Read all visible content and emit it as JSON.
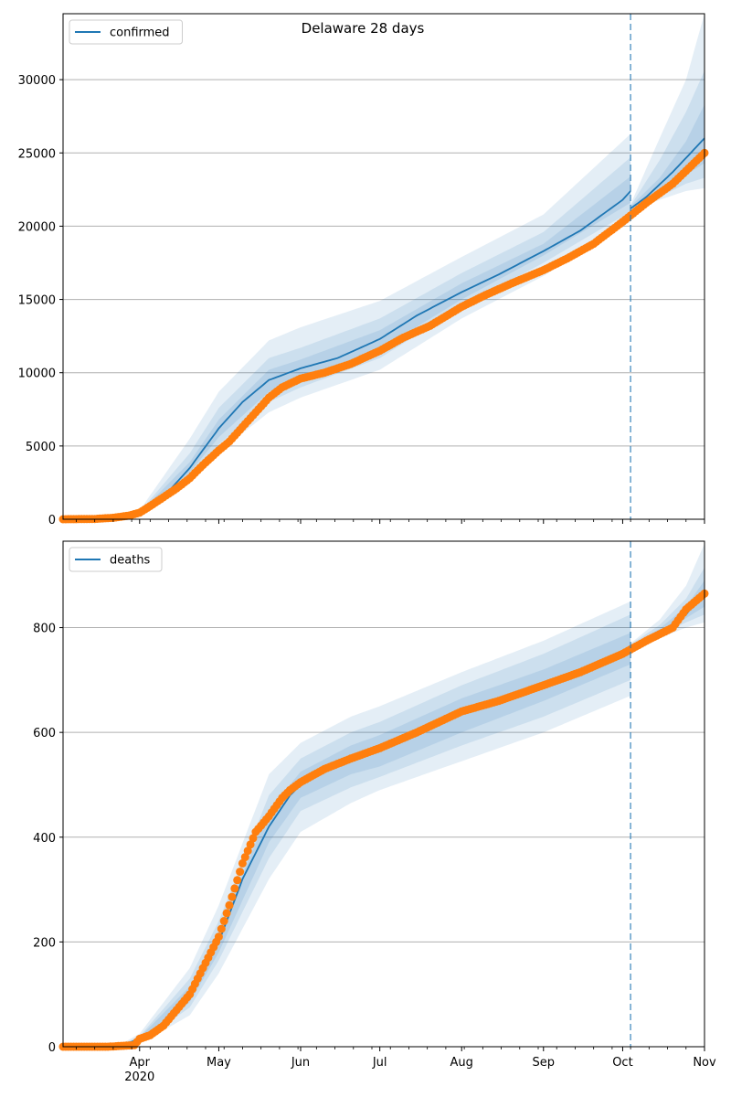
{
  "title": "Delaware 28 days",
  "colors": {
    "model": "#1f77b4",
    "observed": "#ff7f0e",
    "band": "#1f77b4",
    "forecast_line": "#1f77b4",
    "grid": "#b0b0b0"
  },
  "x_axis": {
    "start": "2020-03-03",
    "end": "2020-11-01",
    "tick_labels": [
      {
        "date": "2020-04-01",
        "label": "Apr",
        "sub": "2020"
      },
      {
        "date": "2020-05-01",
        "label": "May",
        "sub": ""
      },
      {
        "date": "2020-06-01",
        "label": "Jun",
        "sub": ""
      },
      {
        "date": "2020-07-01",
        "label": "Jul",
        "sub": ""
      },
      {
        "date": "2020-08-01",
        "label": "Aug",
        "sub": ""
      },
      {
        "date": "2020-09-01",
        "label": "Sep",
        "sub": ""
      },
      {
        "date": "2020-10-01",
        "label": "Oct",
        "sub": ""
      },
      {
        "date": "2020-11-01",
        "label": "Nov",
        "sub": ""
      }
    ],
    "forecast_start": "2020-10-04"
  },
  "chart_data": [
    {
      "type": "line",
      "legend": "confirmed",
      "legend_position": "upper-left",
      "ylim": [
        0,
        34500
      ],
      "yticks": [
        0,
        5000,
        10000,
        15000,
        20000,
        25000,
        30000
      ],
      "grid": "horizontal",
      "fit": {
        "dates": [
          "2020-03-03",
          "2020-03-20",
          "2020-03-25",
          "2020-04-01",
          "2020-04-10",
          "2020-04-20",
          "2020-05-01",
          "2020-05-10",
          "2020-05-20",
          "2020-06-01",
          "2020-06-15",
          "2020-07-01",
          "2020-07-15",
          "2020-08-01",
          "2020-08-15",
          "2020-09-01",
          "2020-09-15",
          "2020-10-01",
          "2020-10-04"
        ],
        "values": [
          0,
          20,
          80,
          400,
          1500,
          3500,
          6200,
          8000,
          9500,
          10300,
          11000,
          12300,
          13900,
          15500,
          16700,
          18300,
          19700,
          21800,
          22400
        ]
      },
      "forecast": {
        "dates": [
          "2020-10-04",
          "2020-10-10",
          "2020-10-20",
          "2020-11-01"
        ],
        "values": [
          21200,
          22000,
          23700,
          26000
        ]
      },
      "bands": [
        {
          "dates": [
            "2020-03-03",
            "2020-03-20",
            "2020-04-01",
            "2020-04-20",
            "2020-05-01",
            "2020-05-20",
            "2020-06-01",
            "2020-07-01",
            "2020-08-01",
            "2020-09-01",
            "2020-10-04"
          ],
          "lower": [
            0,
            0,
            250,
            2500,
            4600,
            7300,
            8300,
            10200,
            13700,
            16600,
            20300
          ],
          "upper": [
            0,
            50,
            600,
            5500,
            8700,
            12200,
            13100,
            14900,
            17900,
            20800,
            26300
          ]
        },
        {
          "dates": [
            "2020-03-03",
            "2020-03-20",
            "2020-04-01",
            "2020-04-20",
            "2020-05-01",
            "2020-05-20",
            "2020-06-01",
            "2020-07-01",
            "2020-08-01",
            "2020-09-01",
            "2020-10-04"
          ],
          "lower": [
            0,
            5,
            300,
            2900,
            5100,
            8000,
            9000,
            11000,
            14500,
            17500,
            21000
          ],
          "upper": [
            0,
            40,
            500,
            4500,
            7600,
            11000,
            11700,
            13700,
            16800,
            19600,
            24700
          ]
        },
        {
          "dates": [
            "2020-03-03",
            "2020-03-20",
            "2020-04-01",
            "2020-04-20",
            "2020-05-01",
            "2020-05-20",
            "2020-06-01",
            "2020-07-01",
            "2020-08-01",
            "2020-09-01",
            "2020-10-04"
          ],
          "lower": [
            0,
            10,
            350,
            3200,
            5600,
            8700,
            9600,
            11600,
            15000,
            18000,
            21600
          ],
          "upper": [
            0,
            30,
            450,
            3900,
            6800,
            10200,
            10900,
            12900,
            16100,
            18800,
            23400
          ]
        }
      ],
      "forecast_bands": [
        {
          "dates": [
            "2020-10-04",
            "2020-10-15",
            "2020-10-25",
            "2020-11-01"
          ],
          "lower": [
            21000,
            21800,
            22400,
            22600
          ],
          "upper": [
            21500,
            26000,
            30000,
            34500
          ]
        },
        {
          "dates": [
            "2020-10-04",
            "2020-10-15",
            "2020-10-25",
            "2020-11-01"
          ],
          "lower": [
            21100,
            22000,
            22900,
            23300
          ],
          "upper": [
            21400,
            24500,
            27800,
            30600
          ]
        },
        {
          "dates": [
            "2020-10-04",
            "2020-10-15",
            "2020-10-25",
            "2020-11-01"
          ],
          "lower": [
            21150,
            22300,
            23500,
            24300
          ],
          "upper": [
            21350,
            23300,
            25800,
            28300
          ]
        }
      ],
      "observed": {
        "dates": [
          "2020-03-03",
          "2020-03-15",
          "2020-03-22",
          "2020-03-28",
          "2020-04-01",
          "2020-04-05",
          "2020-04-10",
          "2020-04-15",
          "2020-04-20",
          "2020-04-25",
          "2020-05-01",
          "2020-05-05",
          "2020-05-10",
          "2020-05-15",
          "2020-05-20",
          "2020-05-25",
          "2020-06-01",
          "2020-06-10",
          "2020-06-20",
          "2020-07-01",
          "2020-07-10",
          "2020-07-20",
          "2020-08-01",
          "2020-08-10",
          "2020-08-20",
          "2020-09-01",
          "2020-09-10",
          "2020-09-20",
          "2020-10-01",
          "2020-10-10",
          "2020-10-20",
          "2020-11-01"
        ],
        "values": [
          0,
          20,
          100,
          250,
          450,
          900,
          1500,
          2100,
          2800,
          3700,
          4700,
          5300,
          6300,
          7300,
          8300,
          9000,
          9600,
          10000,
          10600,
          11500,
          12400,
          13200,
          14500,
          15300,
          16100,
          17000,
          17800,
          18800,
          20300,
          21600,
          22900,
          25000
        ]
      }
    },
    {
      "type": "line",
      "legend": "deaths",
      "legend_position": "upper-left",
      "ylim": [
        0,
        965
      ],
      "yticks": [
        0,
        200,
        400,
        600,
        800
      ],
      "grid": "horizontal",
      "fit": {
        "dates": [
          "2020-03-03",
          "2020-03-25",
          "2020-04-01",
          "2020-04-10",
          "2020-04-20",
          "2020-05-01",
          "2020-05-10",
          "2020-05-20",
          "2020-05-28",
          "2020-06-01",
          "2020-06-10",
          "2020-06-20",
          "2020-07-01",
          "2020-07-15",
          "2020-08-01",
          "2020-08-15",
          "2020-09-01",
          "2020-09-15",
          "2020-10-01",
          "2020-10-04"
        ],
        "values": [
          0,
          2,
          15,
          40,
          100,
          200,
          320,
          420,
          480,
          500,
          530,
          550,
          565,
          595,
          635,
          665,
          690,
          715,
          745,
          760
        ]
      },
      "forecast": {
        "dates": [
          "2020-10-04",
          "2020-10-15",
          "2020-10-25",
          "2020-11-01"
        ],
        "values": [
          760,
          790,
          825,
          870
        ]
      },
      "bands": [
        {
          "dates": [
            "2020-03-03",
            "2020-03-25",
            "2020-04-01",
            "2020-04-20",
            "2020-05-01",
            "2020-05-20",
            "2020-06-01",
            "2020-06-20",
            "2020-07-01",
            "2020-08-01",
            "2020-09-01",
            "2020-10-04"
          ],
          "lower": [
            0,
            0,
            5,
            60,
            140,
            320,
            410,
            465,
            490,
            545,
            600,
            670
          ],
          "upper": [
            0,
            5,
            25,
            150,
            270,
            520,
            580,
            630,
            650,
            715,
            775,
            850
          ]
        },
        {
          "dates": [
            "2020-03-03",
            "2020-03-25",
            "2020-04-01",
            "2020-04-20",
            "2020-05-01",
            "2020-05-20",
            "2020-06-01",
            "2020-06-20",
            "2020-07-01",
            "2020-08-01",
            "2020-09-01",
            "2020-10-04"
          ],
          "lower": [
            0,
            0,
            8,
            75,
            165,
            360,
            450,
            495,
            515,
            575,
            630,
            700
          ],
          "upper": [
            0,
            4,
            20,
            130,
            240,
            480,
            550,
            600,
            620,
            690,
            750,
            825
          ]
        },
        {
          "dates": [
            "2020-03-03",
            "2020-03-25",
            "2020-04-01",
            "2020-04-20",
            "2020-05-01",
            "2020-05-20",
            "2020-06-01",
            "2020-06-20",
            "2020-07-01",
            "2020-08-01",
            "2020-09-01",
            "2020-10-04"
          ],
          "lower": [
            0,
            1,
            10,
            85,
            180,
            390,
            475,
            520,
            535,
            600,
            660,
            730
          ],
          "upper": [
            0,
            3,
            18,
            115,
            220,
            450,
            525,
            575,
            595,
            665,
            720,
            790
          ]
        }
      ],
      "forecast_bands": [
        {
          "dates": [
            "2020-10-04",
            "2020-10-15",
            "2020-10-25",
            "2020-11-01"
          ],
          "lower": [
            750,
            780,
            800,
            810
          ],
          "upper": [
            770,
            815,
            880,
            960
          ]
        },
        {
          "dates": [
            "2020-10-04",
            "2020-10-15",
            "2020-10-25",
            "2020-11-01"
          ],
          "lower": [
            752,
            785,
            810,
            825
          ],
          "upper": [
            768,
            805,
            855,
            915
          ]
        },
        {
          "dates": [
            "2020-10-04",
            "2020-10-15",
            "2020-10-25",
            "2020-11-01"
          ],
          "lower": [
            755,
            788,
            818,
            840
          ],
          "upper": [
            765,
            798,
            840,
            890
          ]
        }
      ],
      "observed": {
        "dates": [
          "2020-03-03",
          "2020-03-20",
          "2020-03-30",
          "2020-04-01",
          "2020-04-05",
          "2020-04-10",
          "2020-04-15",
          "2020-04-20",
          "2020-04-25",
          "2020-05-01",
          "2020-05-05",
          "2020-05-10",
          "2020-05-15",
          "2020-05-20",
          "2020-05-25",
          "2020-05-28",
          "2020-06-01",
          "2020-06-10",
          "2020-06-20",
          "2020-07-01",
          "2020-07-15",
          "2020-08-01",
          "2020-08-15",
          "2020-09-01",
          "2020-09-15",
          "2020-10-01",
          "2020-10-10",
          "2020-10-20",
          "2020-10-25",
          "2020-11-01"
        ],
        "values": [
          0,
          0,
          3,
          15,
          22,
          40,
          70,
          100,
          150,
          210,
          270,
          350,
          410,
          440,
          475,
          490,
          505,
          530,
          550,
          570,
          600,
          640,
          660,
          690,
          715,
          750,
          775,
          800,
          835,
          865
        ]
      }
    }
  ]
}
